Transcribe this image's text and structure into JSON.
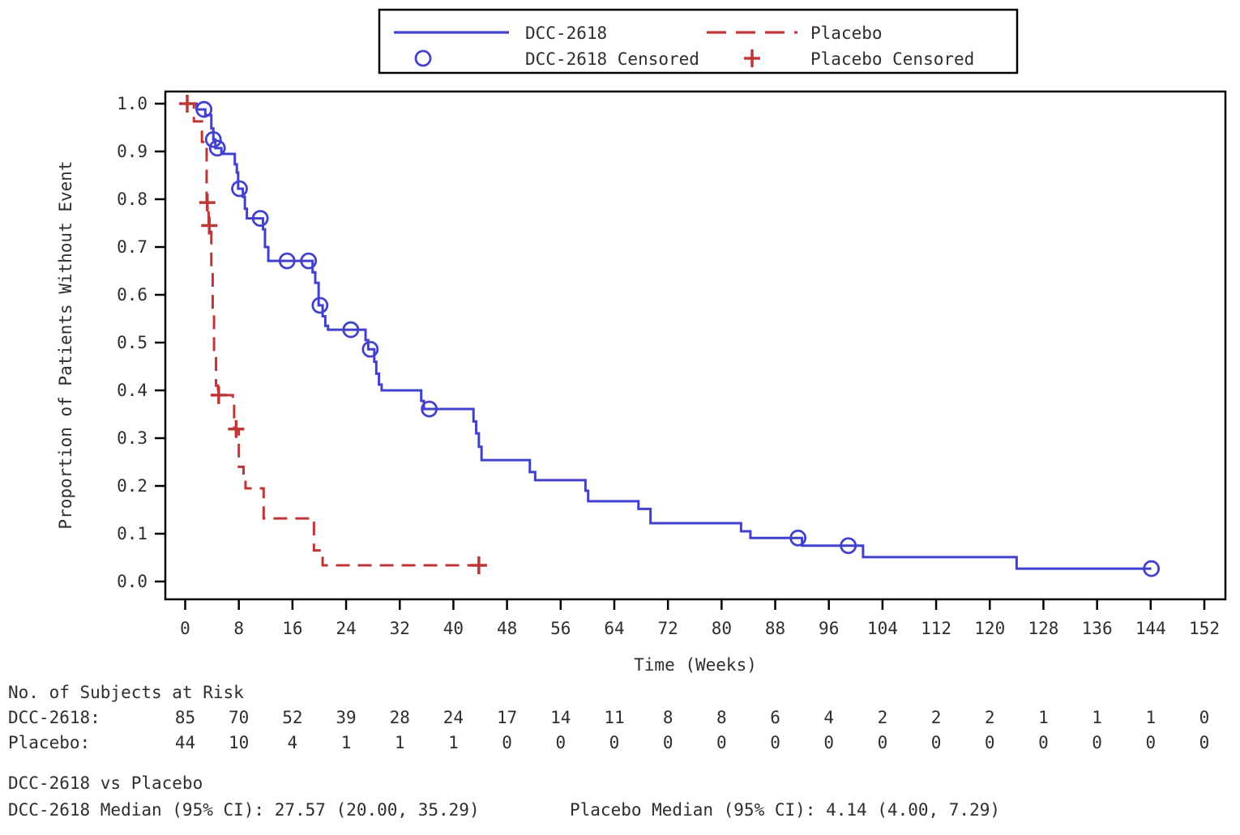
{
  "page": {
    "background": "#ffffff",
    "text_color": "#2e2e2e",
    "axis_color": "#000000"
  },
  "legend": {
    "items": [
      {
        "label": "DCC-2618",
        "marker": "solid-line",
        "color": "#4141cd"
      },
      {
        "label": "Placebo",
        "marker": "dashed-line",
        "color": "#bf3637"
      },
      {
        "label": "DCC-2618 Censored",
        "marker": "open-circle",
        "color": "#4141cd"
      },
      {
        "label": "Placebo Censored",
        "marker": "plus",
        "color": "#bf3637"
      }
    ]
  },
  "chart_data": {
    "type": "line",
    "subtype": "kaplan-meier-step",
    "title": "",
    "xlabel": "Time (Weeks)",
    "ylabel": "Proportion of Patients Without Event",
    "xlim": [
      0,
      152
    ],
    "xtick_step": 8,
    "ylim": [
      0.0,
      1.0
    ],
    "ytick_step": 0.1,
    "grid": false,
    "legend_position": "top-center",
    "series": [
      {
        "name": "DCC-2618",
        "color": "#4141cd",
        "line_style": "solid",
        "censor_marker": "open-circle",
        "steps": [
          [
            0,
            1.0
          ],
          [
            1.7,
            0.988
          ],
          [
            3.0,
            0.976
          ],
          [
            3.9,
            0.948
          ],
          [
            4.2,
            0.925
          ],
          [
            4.5,
            0.907
          ],
          [
            5.4,
            0.895
          ],
          [
            7.4,
            0.873
          ],
          [
            7.7,
            0.856
          ],
          [
            7.9,
            0.822
          ],
          [
            8.6,
            0.805
          ],
          [
            8.9,
            0.78
          ],
          [
            9.2,
            0.76
          ],
          [
            11.6,
            0.737
          ],
          [
            11.9,
            0.7
          ],
          [
            12.4,
            0.671
          ],
          [
            19.0,
            0.647
          ],
          [
            19.4,
            0.625
          ],
          [
            19.9,
            0.578
          ],
          [
            20.5,
            0.555
          ],
          [
            20.9,
            0.535
          ],
          [
            21.3,
            0.527
          ],
          [
            26.9,
            0.505
          ],
          [
            27.3,
            0.486
          ],
          [
            28.2,
            0.46
          ],
          [
            28.5,
            0.435
          ],
          [
            28.9,
            0.412
          ],
          [
            29.3,
            0.4
          ],
          [
            35.2,
            0.378
          ],
          [
            35.6,
            0.361
          ],
          [
            43.0,
            0.335
          ],
          [
            43.4,
            0.31
          ],
          [
            43.8,
            0.282
          ],
          [
            44.2,
            0.254
          ],
          [
            51.4,
            0.229
          ],
          [
            52.2,
            0.212
          ],
          [
            59.7,
            0.19
          ],
          [
            60.1,
            0.168
          ],
          [
            67.6,
            0.152
          ],
          [
            69.4,
            0.122
          ],
          [
            82.9,
            0.105
          ],
          [
            84.3,
            0.091
          ],
          [
            92.0,
            0.075
          ],
          [
            101.1,
            0.051
          ],
          [
            124.0,
            0.027
          ],
          [
            144.1,
            0.027
          ]
        ],
        "censored": [
          [
            2.8,
            0.988
          ],
          [
            4.2,
            0.925
          ],
          [
            4.8,
            0.907
          ],
          [
            8.1,
            0.822
          ],
          [
            11.2,
            0.76
          ],
          [
            15.2,
            0.671
          ],
          [
            18.4,
            0.671
          ],
          [
            20.1,
            0.578
          ],
          [
            24.7,
            0.527
          ],
          [
            27.6,
            0.486
          ],
          [
            36.4,
            0.361
          ],
          [
            91.4,
            0.091
          ],
          [
            98.9,
            0.075
          ],
          [
            144.1,
            0.027
          ]
        ]
      },
      {
        "name": "Placebo",
        "color": "#bf3637",
        "line_style": "dashed",
        "censor_marker": "plus",
        "steps": [
          [
            0,
            1.0
          ],
          [
            1.3,
            0.963
          ],
          [
            2.5,
            0.92
          ],
          [
            3.2,
            0.793
          ],
          [
            3.5,
            0.745
          ],
          [
            3.9,
            0.65
          ],
          [
            4.1,
            0.56
          ],
          [
            4.3,
            0.47
          ],
          [
            4.6,
            0.41
          ],
          [
            4.9,
            0.39
          ],
          [
            7.1,
            0.373
          ],
          [
            7.3,
            0.319
          ],
          [
            8.0,
            0.24
          ],
          [
            8.7,
            0.215
          ],
          [
            9.0,
            0.195
          ],
          [
            11.7,
            0.132
          ],
          [
            19.2,
            0.065
          ],
          [
            20.5,
            0.034
          ],
          [
            43.8,
            0.034
          ]
        ],
        "censored": [
          [
            0.3,
            1.0
          ],
          [
            3.3,
            0.793
          ],
          [
            3.6,
            0.745
          ],
          [
            5.0,
            0.39
          ],
          [
            7.6,
            0.319
          ],
          [
            43.8,
            0.034
          ]
        ]
      }
    ],
    "risk_table": {
      "title": "No. of Subjects at Risk",
      "weeks": [
        0,
        8,
        16,
        24,
        32,
        40,
        48,
        56,
        64,
        72,
        80,
        88,
        96,
        104,
        112,
        120,
        128,
        136,
        144,
        152
      ],
      "rows": [
        {
          "label": "DCC-2618:",
          "values": [
            85,
            70,
            52,
            39,
            28,
            24,
            17,
            14,
            11,
            8,
            8,
            6,
            4,
            2,
            2,
            2,
            1,
            1,
            1,
            0
          ]
        },
        {
          "label": "Placebo:",
          "values": [
            44,
            10,
            4,
            1,
            1,
            1,
            0,
            0,
            0,
            0,
            0,
            0,
            0,
            0,
            0,
            0,
            0,
            0,
            0,
            0
          ]
        }
      ]
    },
    "comparison": {
      "title": "DCC-2618 vs Placebo",
      "left": "DCC-2618 Median (95% CI): 27.57 (20.00, 35.29)",
      "right": "Placebo  Median (95% CI): 4.14 (4.00, 7.29)"
    }
  }
}
